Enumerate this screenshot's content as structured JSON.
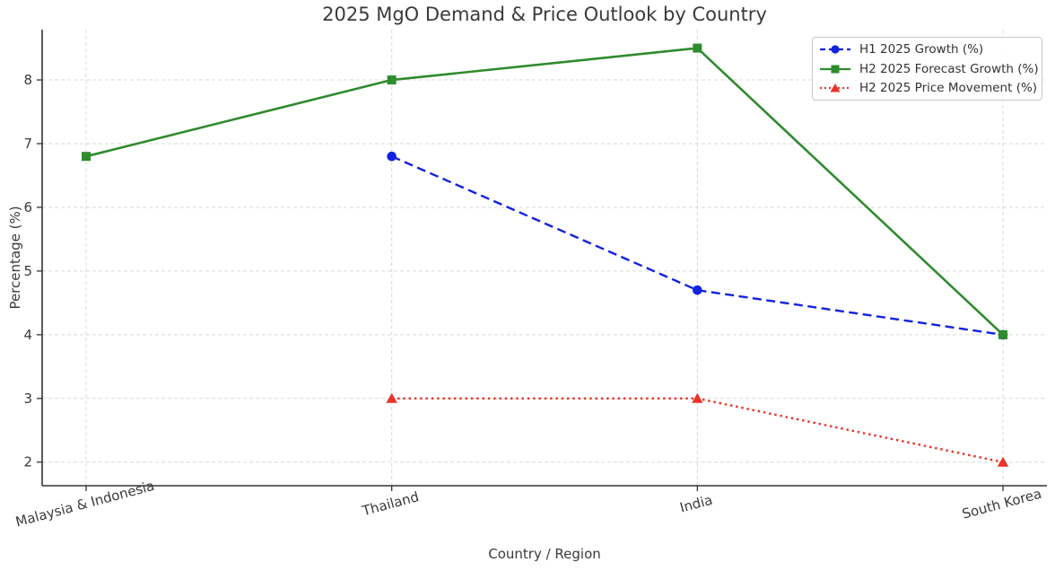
{
  "title": "2025 MgO Demand & Price Outlook by Country",
  "colors": {
    "background": "#ffffff",
    "grid": "#d9d9d9",
    "spine": "#333333",
    "text": "#3a3a3a",
    "blue_series": "#1222e0",
    "green_series": "#2e8b2e",
    "red_series": "#e9342a"
  },
  "chart_data": {
    "type": "line",
    "title": "2025 MgO Demand & Price Outlook by Country",
    "xlabel": "Country / Region",
    "ylabel": "Percentage (%)",
    "categories": [
      "Malaysia & Indonesia",
      "Thailand",
      "India",
      "South Korea"
    ],
    "yticks": [
      2,
      3,
      4,
      5,
      6,
      7,
      8
    ],
    "ylim": [
      1.63,
      8.79
    ],
    "grid": true,
    "grid_style": "dashed",
    "legend_position": "upper right",
    "series": [
      {
        "name": "H1 2025 Growth (%)",
        "values": [
          null,
          6.8,
          4.7,
          4.0
        ],
        "color": "#1222e0",
        "line_style": "dashed",
        "marker": "circle"
      },
      {
        "name": "H2 2025 Forecast Growth (%)",
        "values": [
          6.8,
          8.0,
          8.5,
          4.0
        ],
        "color": "#2e8b2e",
        "line_style": "solid",
        "marker": "square"
      },
      {
        "name": "H2 2025 Price Movement (%)",
        "values": [
          null,
          3.0,
          3.0,
          2.0
        ],
        "color": "#e9342a",
        "line_style": "dotted",
        "marker": "triangle"
      }
    ]
  }
}
